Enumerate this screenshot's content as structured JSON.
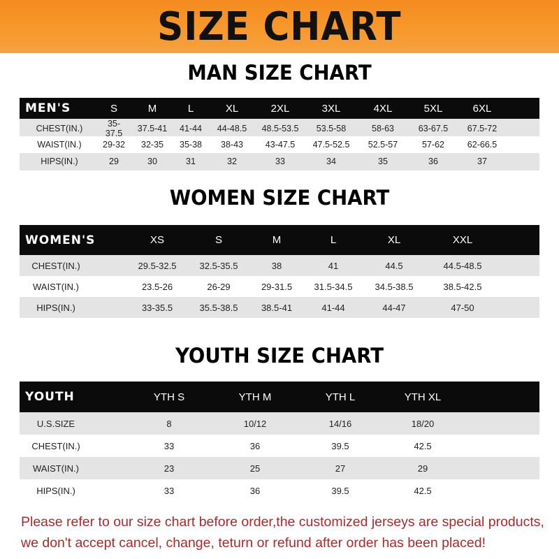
{
  "banner": {
    "title": "SIZE CHART",
    "color": "#f7931e"
  },
  "men": {
    "title": "MAN SIZE CHART",
    "header": "MEN'S",
    "sizes": [
      "S",
      "M",
      "L",
      "XL",
      "2XL",
      "3XL",
      "4XL",
      "5XL",
      "6XL"
    ],
    "rows": [
      {
        "label": "CHEST(IN.)",
        "values": [
          "35-37.5",
          "37.5-41",
          "41-44",
          "44-48.5",
          "48.5-53.5",
          "53.5-58",
          "58-63",
          "63-67.5",
          "67.5-72"
        ]
      },
      {
        "label": "WAIST(IN.)",
        "values": [
          "29-32",
          "32-35",
          "35-38",
          "38-43",
          "43-47.5",
          "47.5-52.5",
          "52.5-57",
          "57-62",
          "62-66.5"
        ]
      },
      {
        "label": "HIPS(IN.)",
        "values": [
          "29",
          "30",
          "31",
          "32",
          "33",
          "34",
          "35",
          "36",
          "37"
        ]
      }
    ]
  },
  "women": {
    "title": "WOMEN SIZE CHART",
    "header": "WOMEN'S",
    "sizes": [
      "XS",
      "S",
      "M",
      "L",
      "XL",
      "XXL"
    ],
    "rows": [
      {
        "label": "CHEST(IN.)",
        "values": [
          "29.5-32.5",
          "32.5-35.5",
          "38",
          "41",
          "44.5",
          "44.5-48.5"
        ]
      },
      {
        "label": "WAIST(IN.)",
        "values": [
          "23.5-26",
          "26-29",
          "29-31.5",
          "31.5-34.5",
          "34.5-38.5",
          "38.5-42.5"
        ]
      },
      {
        "label": "HIPS(IN.)",
        "values": [
          "33-35.5",
          "35.5-38.5",
          "38.5-41",
          "41-44",
          "44-47",
          "47-50"
        ]
      }
    ]
  },
  "youth": {
    "title": "YOUTH SIZE CHART",
    "header": "YOUTH",
    "sizes": [
      "YTH S",
      "YTH M",
      "YTH L",
      "YTH XL"
    ],
    "rows": [
      {
        "label": "U.S.SIZE",
        "values": [
          "8",
          "10/12",
          "14/16",
          "18/20"
        ]
      },
      {
        "label": "CHEST(IN.)",
        "values": [
          "33",
          "36",
          "39.5",
          "42.5"
        ]
      },
      {
        "label": "WAIST(IN.)",
        "values": [
          "23",
          "25",
          "27",
          "29"
        ]
      },
      {
        "label": "HIPS(IN.)",
        "values": [
          "33",
          "36",
          "39.5",
          "42.5"
        ]
      }
    ]
  },
  "notice": {
    "line1": "Please refer to our size chart before order,the customized jerseys are special products,",
    "line2": "we don't accept cancel, change, teturn or refund after order has been placed!",
    "color": "#b3262a"
  }
}
